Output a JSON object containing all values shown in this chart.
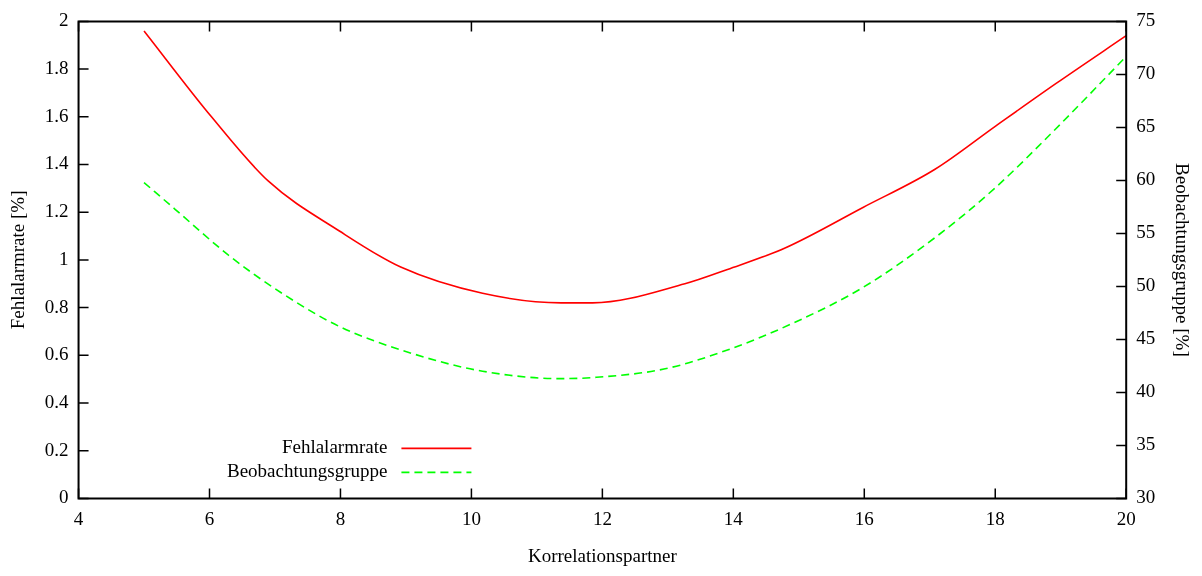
{
  "chart_data": {
    "type": "line",
    "xlabel": "Korrelationspartner",
    "ylabel": "Fehlalarmrate [%]",
    "y2label": "Beobachtungsgruppe [%]",
    "xlim": [
      4,
      20
    ],
    "xticks": [
      4,
      6,
      8,
      10,
      12,
      14,
      16,
      18,
      20
    ],
    "ylim": [
      0,
      2
    ],
    "yticks": [
      0,
      0.2,
      0.4,
      0.6,
      0.8,
      1,
      1.2,
      1.4,
      1.6,
      1.8,
      2
    ],
    "y2lim": [
      30,
      75
    ],
    "y2ticks": [
      30,
      35,
      40,
      45,
      50,
      55,
      60,
      65,
      70,
      75
    ],
    "legend": "bottom left",
    "grid": false,
    "marker": "none",
    "series": [
      {
        "name": "Fehlalarmrate",
        "color": "#ff0000",
        "line_style": "solid",
        "x": [
          5,
          6.03,
          6.9,
          7.99,
          8.92,
          10.17,
          11.37,
          11.85,
          13.26,
          13.91,
          14.79,
          15.98,
          17.08,
          18,
          18.93,
          20
        ],
        "values": [
          1.96,
          1.6,
          1.33,
          1.12,
          0.97,
          0.86,
          0.82,
          0.82,
          0.9,
          0.96,
          1.05,
          1.22,
          1.38,
          1.56,
          1.74,
          1.94
        ]
      },
      {
        "name": "Beobachtungsgruppe",
        "color": "#00ff00",
        "line_style": "dashed",
        "axis": "y2",
        "x": [
          5,
          5.47,
          6.3,
          7.12,
          7.99,
          9.08,
          10.17,
          11.37,
          11.85,
          12.94,
          13.91,
          14.9,
          15.98,
          17.08,
          18,
          18.93,
          20
        ],
        "values": [
          59.8,
          57.3,
          52.9,
          49.3,
          46.2,
          43.7,
          42,
          41.3,
          41.4,
          42.2,
          44,
          46.5,
          49.9,
          54.6,
          59.3,
          64.9,
          71.7
        ]
      }
    ]
  }
}
